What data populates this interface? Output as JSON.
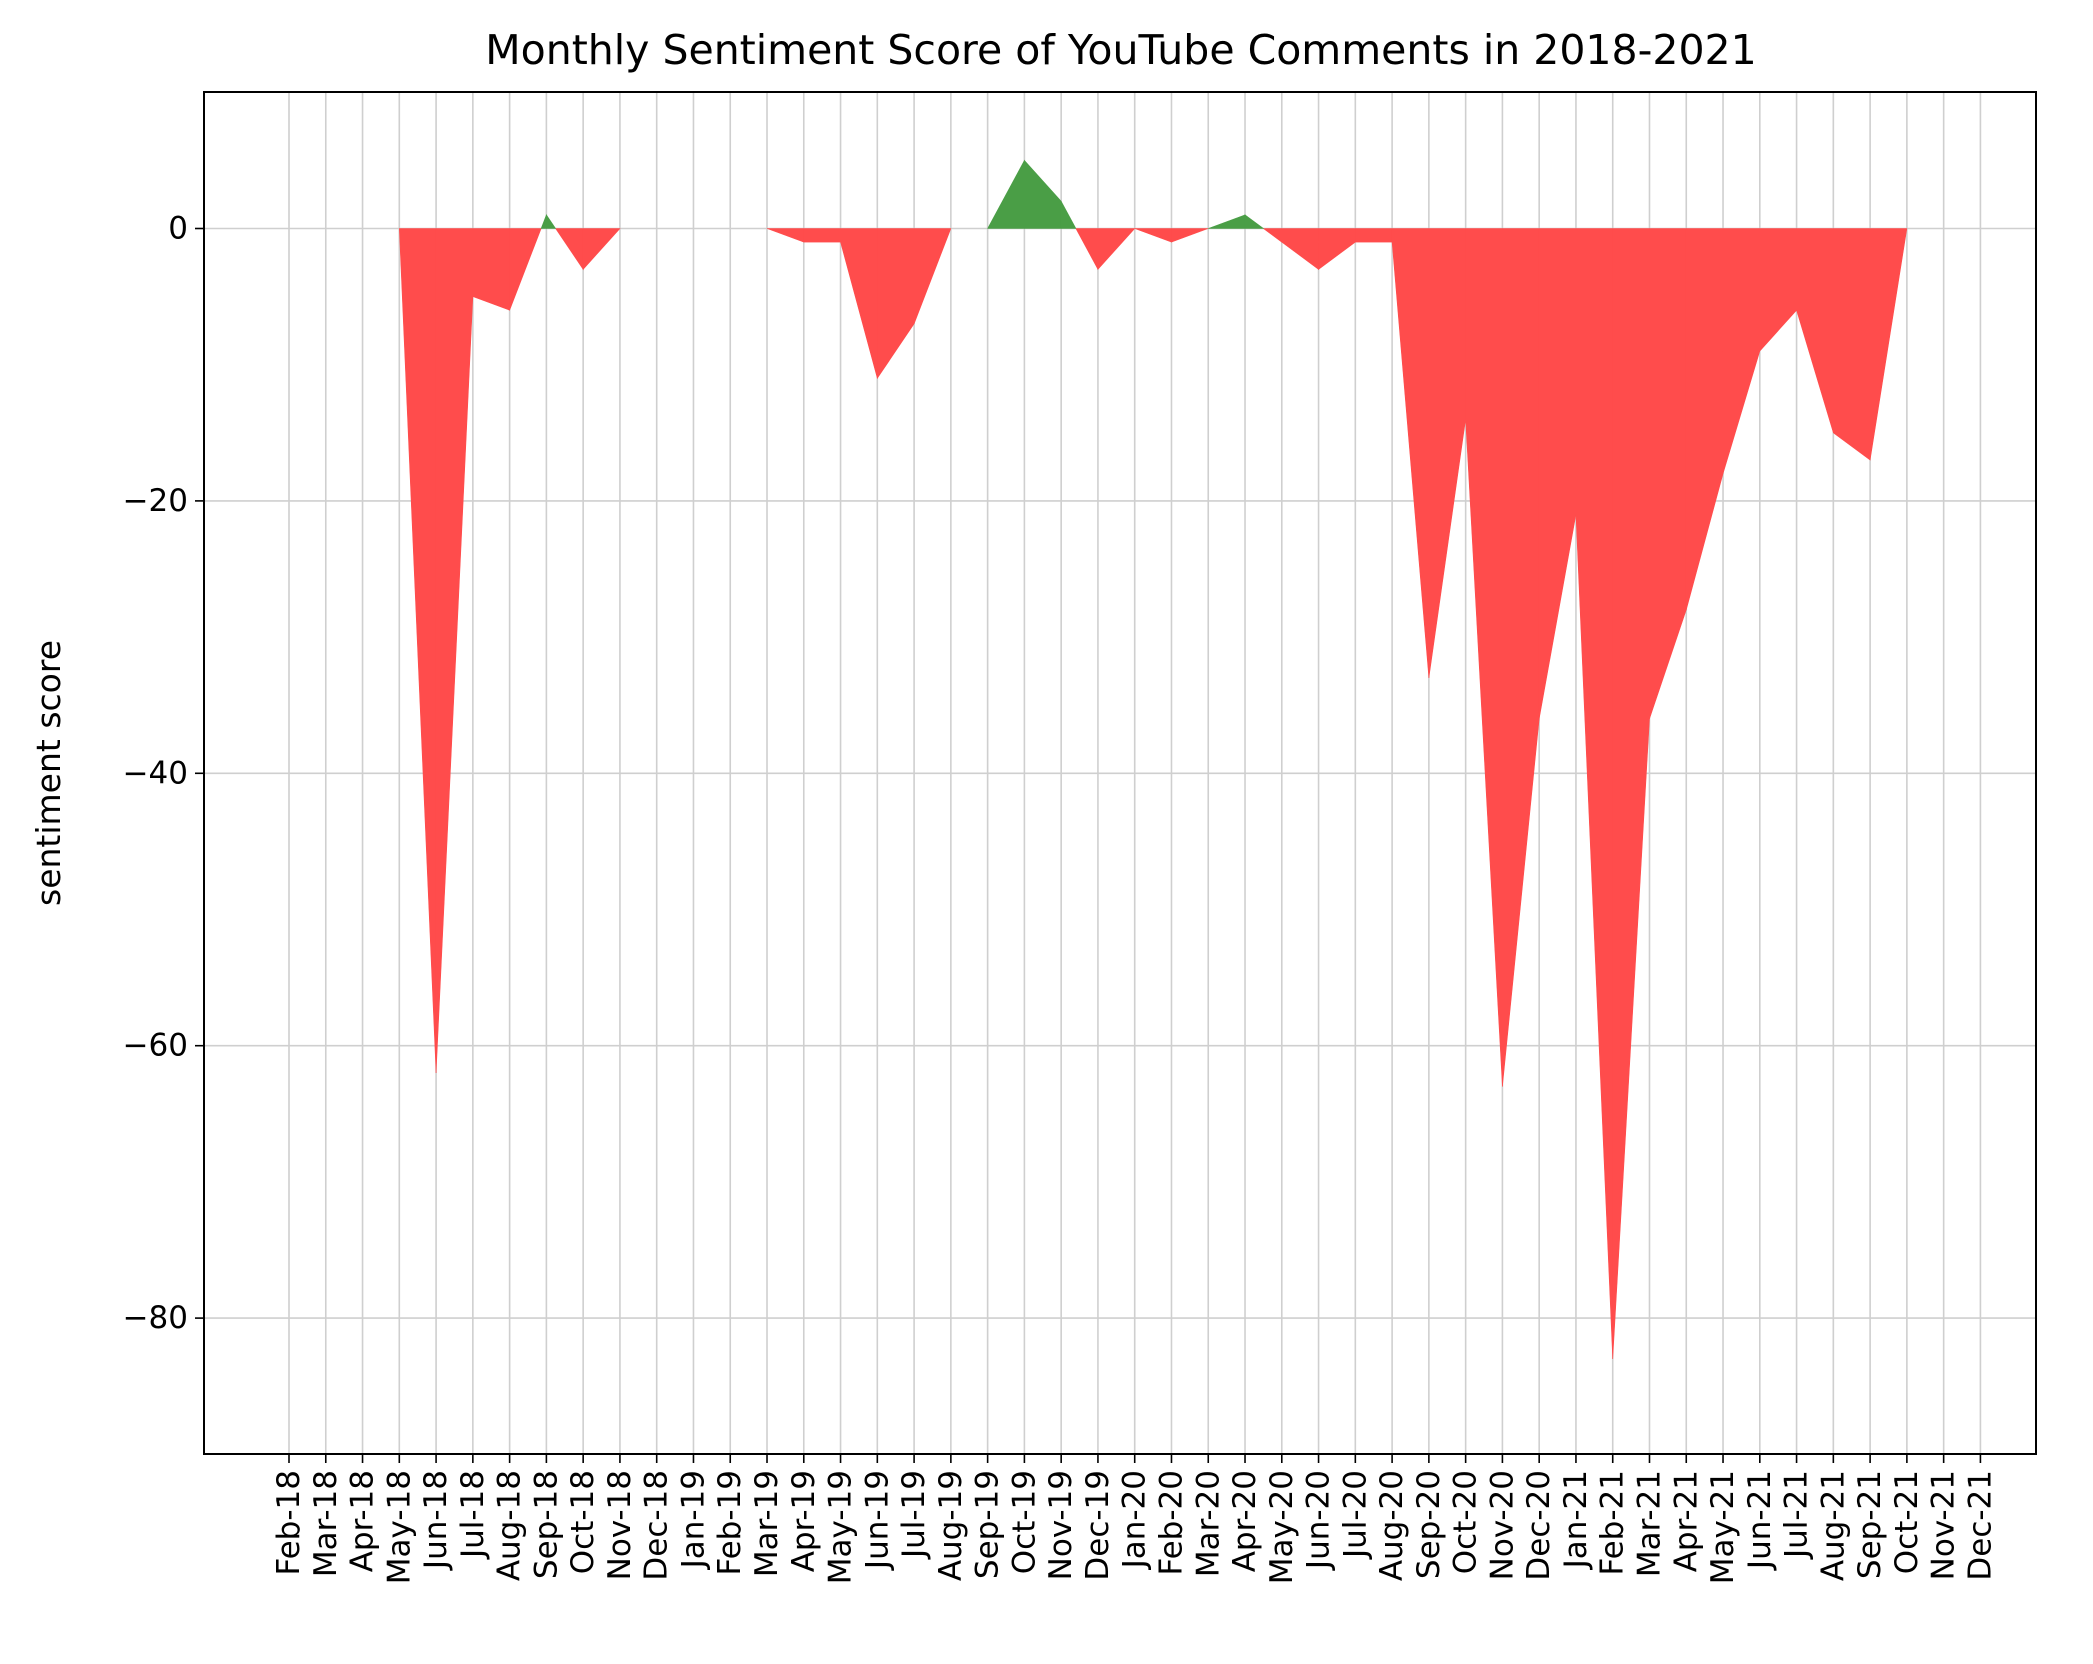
{
  "chart_data": {
    "type": "area",
    "title": "Monthly Sentiment Score of YouTube Comments in 2018-2021",
    "xlabel": "",
    "ylabel": "sentiment score",
    "categories": [
      "Feb-18",
      "Mar-18",
      "Apr-18",
      "May-18",
      "Jun-18",
      "Jul-18",
      "Aug-18",
      "Sep-18",
      "Oct-18",
      "Nov-18",
      "Dec-18",
      "Jan-19",
      "Feb-19",
      "Mar-19",
      "Apr-19",
      "May-19",
      "Jun-19",
      "Jul-19",
      "Aug-19",
      "Sep-19",
      "Oct-19",
      "Nov-19",
      "Dec-19",
      "Jan-20",
      "Feb-20",
      "Mar-20",
      "Apr-20",
      "May-20",
      "Jun-20",
      "Jul-20",
      "Aug-20",
      "Sep-20",
      "Oct-20",
      "Nov-20",
      "Dec-20",
      "Jan-21",
      "Feb-21",
      "Mar-21",
      "Apr-21",
      "May-21",
      "Jun-21",
      "Jul-21",
      "Aug-21",
      "Sep-21",
      "Oct-21",
      "Nov-21",
      "Dec-21"
    ],
    "values": [
      0,
      0,
      0,
      0,
      -62,
      -5,
      -6,
      1,
      -3,
      0,
      0,
      0,
      0,
      0,
      -1,
      -1,
      -11,
      -7,
      0,
      0,
      5,
      2,
      -3,
      0,
      -1,
      0,
      1,
      -1,
      -3,
      -1,
      -1,
      -33,
      -14,
      -63,
      -36,
      -21,
      -83,
      -36,
      -28,
      -18,
      -9,
      -6,
      -15,
      -17,
      0,
      0,
      0
    ],
    "yticks": [
      0,
      -20,
      -40,
      -60,
      -80
    ],
    "ylim": [
      -90,
      10
    ],
    "grid": true,
    "positive_color": "#4a9e46",
    "negative_color": "#ff4c4c"
  }
}
